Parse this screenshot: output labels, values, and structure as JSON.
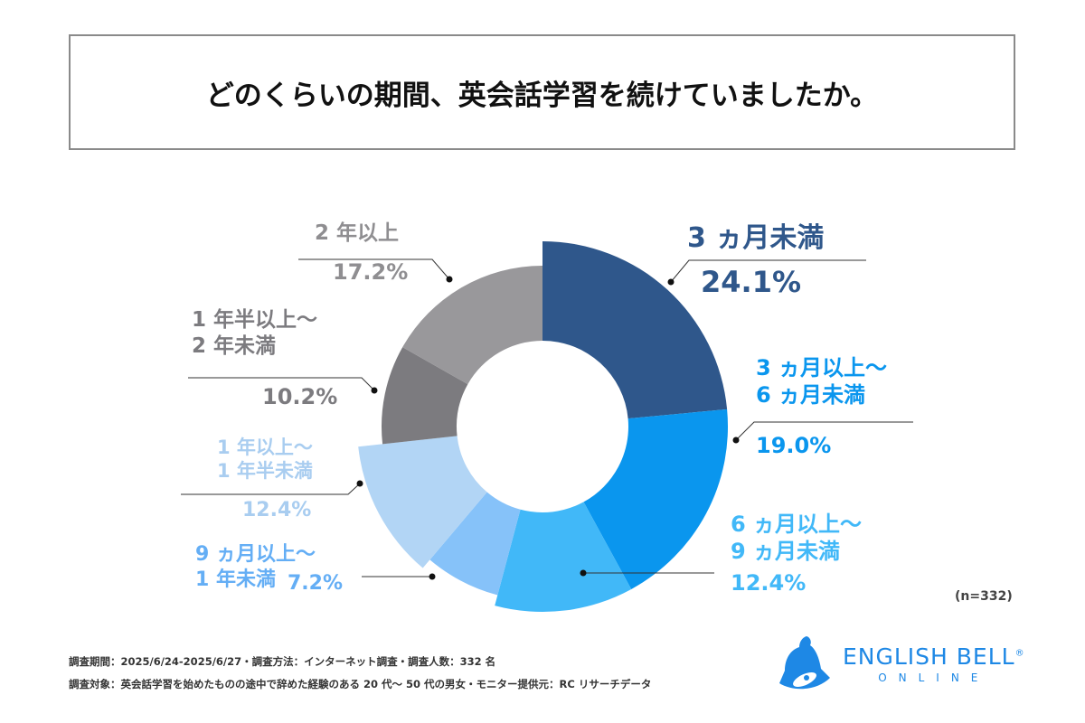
{
  "title": "どのくらいの期間、英会話学習を続けていましたか。",
  "sample_note": "(n=332)",
  "footer": {
    "line1": "調査期間：2025/6/24-2025/6/27・調査方法：インターネット調査・調査人数：332 名",
    "line2": "調査対象：英会話学習を始めたものの途中で辞めた経験のある 20 代～ 50 代の男女・モニター提供元：RC リサーチデータ"
  },
  "logo": {
    "name": "ENGLISH BELL",
    "sub": "ONLINE",
    "mark": "®"
  },
  "chart_data": {
    "type": "pie",
    "donut": true,
    "start": "top",
    "direction": "clockwise",
    "categories": [
      "3ヵ月未満",
      "3ヵ月以上～6ヵ月未満",
      "6ヵ月以上～9ヵ月未満",
      "9ヵ月以上～1年未満",
      "1年以上～1年半未満",
      "1年半以上～2年未満",
      "2年以上"
    ],
    "values": [
      24.1,
      19.0,
      12.4,
      7.2,
      12.4,
      10.2,
      17.2
    ],
    "labels": [
      {
        "lines": [
          "3 ヵ月未満"
        ],
        "pct": "24.1%"
      },
      {
        "lines": [
          "3 ヵ月以上～",
          "6 ヵ月未満"
        ],
        "pct": "19.0%"
      },
      {
        "lines": [
          "6 ヵ月以上～",
          "9 ヵ月未満"
        ],
        "pct": "12.4%"
      },
      {
        "lines": [
          "9 ヵ月以上～",
          "1 年未満"
        ],
        "pct": "7.2%"
      },
      {
        "lines": [
          "1 年以上～",
          "1 年半未満"
        ],
        "pct": "12.4%"
      },
      {
        "lines": [
          "1 年半以上～",
          "2 年未満"
        ],
        "pct": "10.2%"
      },
      {
        "lines": [
          "2 年以上"
        ],
        "pct": "17.2%"
      }
    ],
    "colors": [
      "#2f578b",
      "#0a96ee",
      "#41b8f8",
      "#86c2f9",
      "#b2d5f5",
      "#7c7b7f",
      "#99989b"
    ],
    "label_colors": [
      "#2f578b",
      "#0a96ee",
      "#41b8f8",
      "#64aef5",
      "#a9cdf0",
      "#7c7b7f",
      "#8f8e91"
    ]
  }
}
